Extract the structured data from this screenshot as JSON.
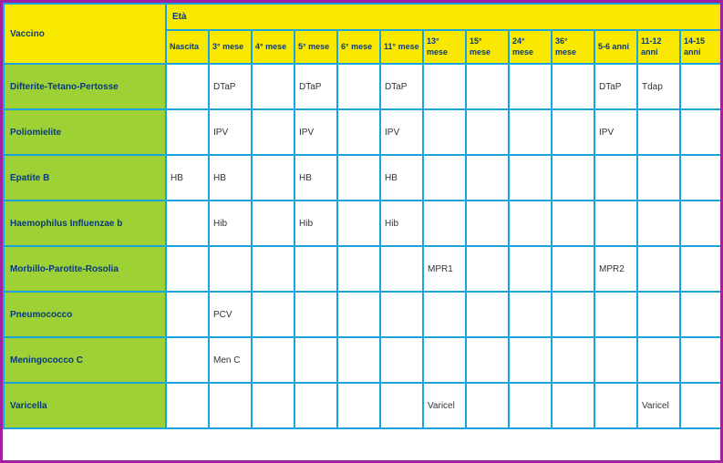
{
  "colors": {
    "border_outer": "#a020a0",
    "grid": "#1aa3dd",
    "header_bg": "#f9e900",
    "header_text": "#0a3a7a",
    "rowhead_bg": "#9ed136",
    "rowhead_text": "#0a3a7a",
    "cell_bg": "#ffffff",
    "cell_text": "#333333"
  },
  "header": {
    "vaccino": "Vaccino",
    "eta": "Età"
  },
  "ages": [
    "Nascita",
    "3° mese",
    "4° mese",
    "5° mese",
    "6° mese",
    "11° mese",
    "13° mese",
    "15° mese",
    "24° mese",
    "36° mese",
    "5-6 anni",
    "11-12 anni",
    "14-15 anni"
  ],
  "rows": [
    {
      "name": "Difterite-Tetano-Pertosse",
      "cells": [
        "",
        "DTaP",
        "",
        "DTaP",
        "",
        "DTaP",
        "",
        "",
        "",
        "",
        "DTaP",
        "Tdap",
        ""
      ]
    },
    {
      "name": "Poliomielite",
      "cells": [
        "",
        "IPV",
        "",
        "IPV",
        "",
        "IPV",
        "",
        "",
        "",
        "",
        "IPV",
        "",
        ""
      ]
    },
    {
      "name": "Epatite B",
      "cells": [
        "HB",
        "HB",
        "",
        "HB",
        "",
        "HB",
        "",
        "",
        "",
        "",
        "",
        "",
        ""
      ]
    },
    {
      "name": "Haemophilus Influenzae b",
      "cells": [
        "",
        "Hib",
        "",
        "Hib",
        "",
        "Hib",
        "",
        "",
        "",
        "",
        "",
        "",
        ""
      ]
    },
    {
      "name": "Morbillo-Parotite-Rosolia",
      "cells": [
        "",
        "",
        "",
        "",
        "",
        "",
        "MPR1",
        "",
        "",
        "",
        "MPR2",
        "",
        ""
      ]
    },
    {
      "name": "Pneumococco",
      "cells": [
        "",
        "PCV",
        "",
        "",
        "",
        "",
        "",
        "",
        "",
        "",
        "",
        "",
        ""
      ]
    },
    {
      "name": "Meningococco C",
      "cells": [
        "",
        "Men C",
        "",
        "",
        "",
        "",
        "",
        "",
        "",
        "",
        "",
        "",
        ""
      ]
    },
    {
      "name": "Varicella",
      "cells": [
        "",
        "",
        "",
        "",
        "",
        "",
        "Varicel",
        "",
        "",
        "",
        "",
        "Varicel",
        ""
      ]
    }
  ]
}
